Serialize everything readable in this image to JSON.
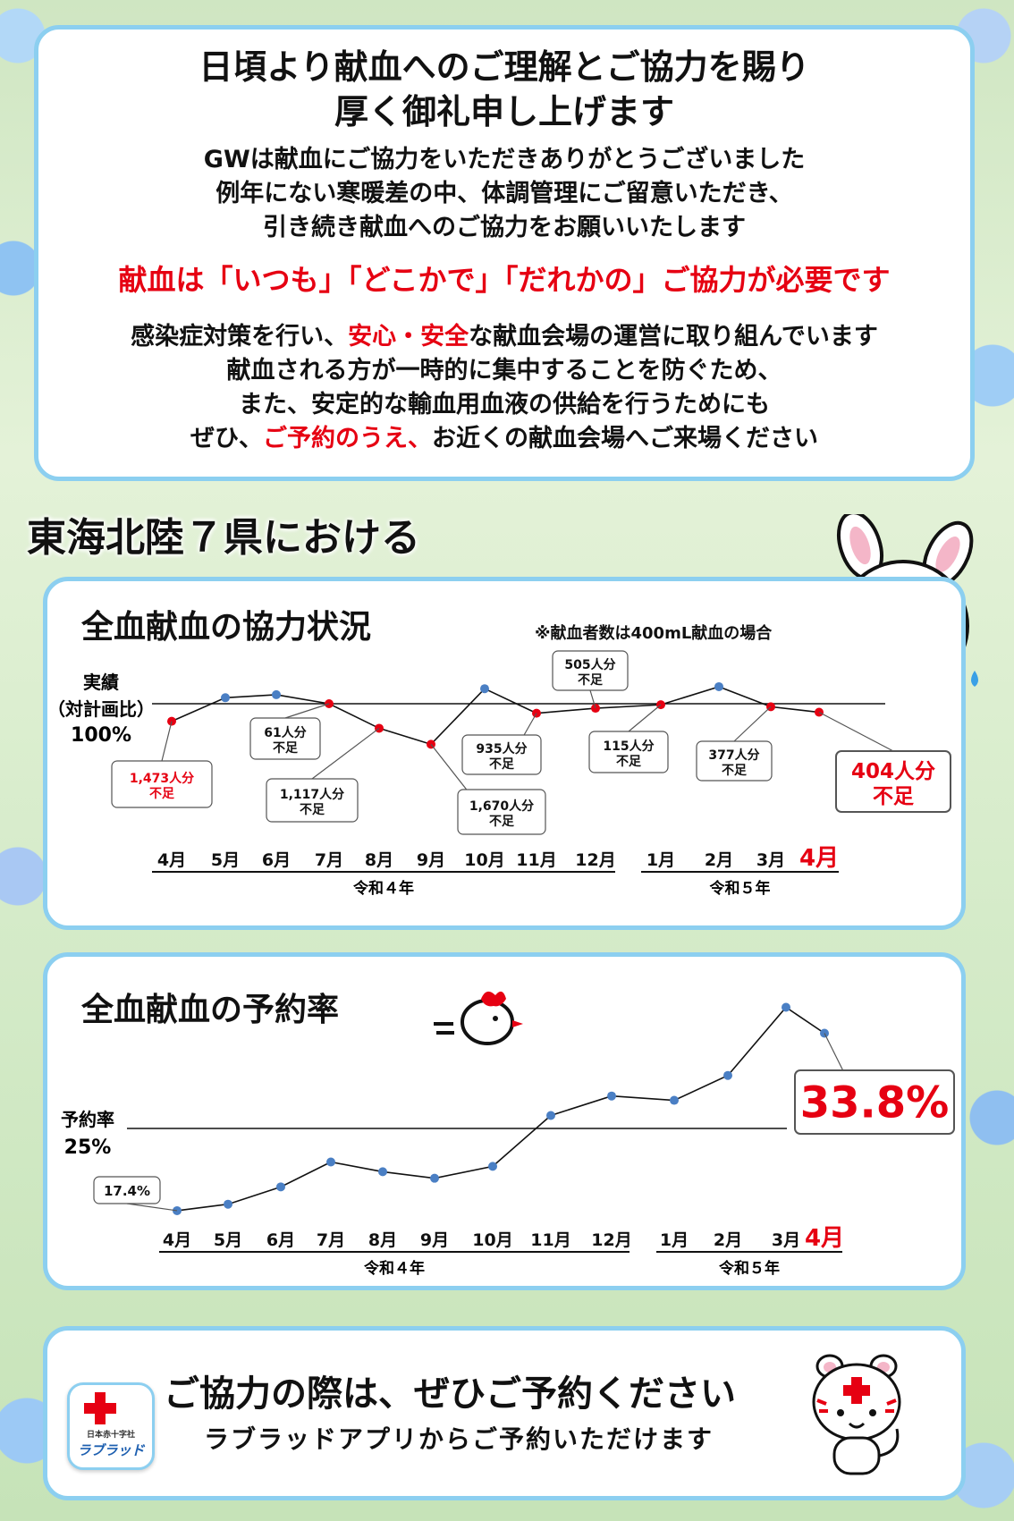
{
  "message": {
    "heading_line1": "日頃より献血へのご理解とご協力を賜り",
    "heading_line2": "厚く御礼申し上げます",
    "body_lines": [
      "GWは献血にご協力をいただきありがとうございました",
      "例年にない寒暖差の中、体調管理にご留意いただき、",
      "引き続き献血へのご協力をお願いいたします"
    ],
    "emphasis": "献血は「いつも」「どこかで」「だれかの」ご協力が必要です",
    "p2_line1_a": "感染症対策を行い、",
    "p2_line1_red": "安心・安全",
    "p2_line1_b": "な献血会場の運営に取り組んでいます",
    "p2_line2": "献血される方が一時的に集中することを防ぐため、",
    "p2_line3": "また、安定的な輸血用血液の供給を行うためにも",
    "p2_line4_a": "ぜひ、",
    "p2_line4_red": "ご予約のうえ、",
    "p2_line4_b": "お近くの献血会場へご来場ください"
  },
  "section_title": "東海北陸７県における",
  "chart1_title": "全血献血の協力状況",
  "chart1_note": "※献血者数は400mL献血の場合",
  "chart2_title": "全血献血の予約率",
  "colors": {
    "red": "#e60012",
    "blue_point": "#4a7fc4",
    "panel_border": "#8ccff0"
  },
  "chart_data": [
    {
      "type": "line",
      "title": "全血献血の協力状況",
      "note": "※献血者数は400mL献血の場合",
      "reference": {
        "label_line1": "実績",
        "label_line2": "（対計画比）",
        "label_value": "100%",
        "value": 100
      },
      "categories": [
        "4月",
        "5月",
        "6月",
        "7月",
        "8月",
        "9月",
        "10月",
        "11月",
        "12月",
        "1月",
        "2月",
        "3月",
        "4月"
      ],
      "highlight_category": 12,
      "year_groups": [
        {
          "label": "令和４年",
          "from": 0,
          "to": 8
        },
        {
          "label": "令和５年",
          "from": 9,
          "to": 12
        }
      ],
      "values": [
        96.5,
        101.2,
        101.8,
        100.0,
        95.1,
        91.9,
        103.0,
        98.1,
        99.1,
        99.8,
        103.4,
        99.4,
        98.3
      ],
      "shortfall": [
        true,
        false,
        false,
        true,
        true,
        true,
        false,
        true,
        true,
        true,
        false,
        true,
        true
      ],
      "callouts": [
        {
          "index": 0,
          "line1": "1,473人分",
          "line2": "不足",
          "red": true,
          "big": false
        },
        {
          "index": 3,
          "line1": "61人分",
          "line2": "不足",
          "red": false,
          "big": false
        },
        {
          "index": 4,
          "line1": "1,117人分",
          "line2": "不足",
          "red": false,
          "big": false
        },
        {
          "index": 5,
          "line1": "1,670人分",
          "line2": "不足",
          "red": false,
          "big": false
        },
        {
          "index": 7,
          "line1": "935人分",
          "line2": "不足",
          "red": false,
          "big": false
        },
        {
          "index": 8,
          "line1": "505人分",
          "line2": "不足",
          "red": false,
          "big": false
        },
        {
          "index": 9,
          "line1": "115人分",
          "line2": "不足",
          "red": false,
          "big": false
        },
        {
          "index": 11,
          "line1": "377人分",
          "line2": "不足",
          "red": false,
          "big": false
        },
        {
          "index": 12,
          "line1": "404人分",
          "line2": "不足",
          "red": true,
          "big": true
        }
      ]
    },
    {
      "type": "line",
      "title": "全血献血の予約率",
      "reference": {
        "label_line1": "予約率",
        "label_value": "25%",
        "value": 25
      },
      "categories": [
        "4月",
        "5月",
        "6月",
        "7月",
        "8月",
        "9月",
        "10月",
        "11月",
        "12月",
        "1月",
        "2月",
        "3月",
        "4月"
      ],
      "highlight_category": 12,
      "year_groups": [
        {
          "label": "令和４年",
          "from": 0,
          "to": 8
        },
        {
          "label": "令和５年",
          "from": 9,
          "to": 12
        }
      ],
      "values": [
        17.4,
        18.0,
        19.6,
        21.9,
        21.0,
        20.4,
        21.5,
        26.2,
        28.0,
        27.6,
        29.9,
        36.2,
        33.8
      ],
      "callouts": [
        {
          "index": 0,
          "text": "17.4%",
          "big": false
        },
        {
          "index": 12,
          "text": "33.8%",
          "big": true
        }
      ]
    }
  ],
  "footer": {
    "title": "ご協力の際は、ぜひご予約ください",
    "subtitle": "ラブラッドアプリからご予約いただけます",
    "app_name": "ラブラッド",
    "app_org": "日本赤十字社"
  }
}
